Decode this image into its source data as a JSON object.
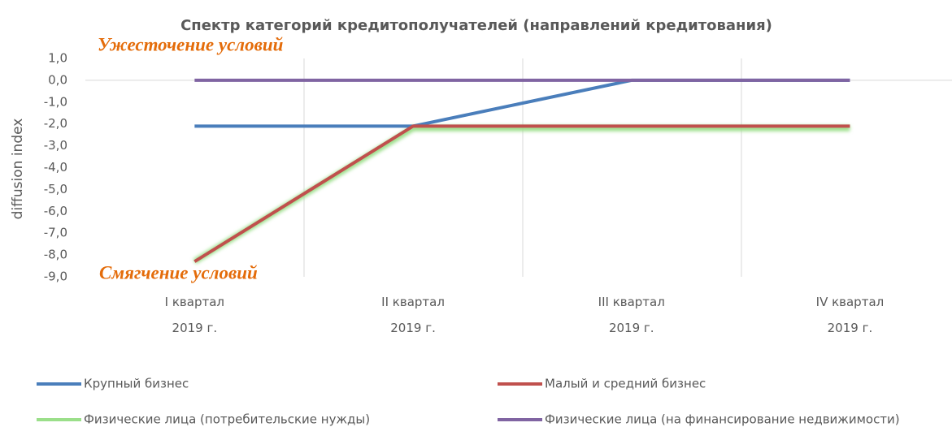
{
  "chart_data": {
    "type": "line",
    "title": "Спектр категорий кредитополучателей (направлений кредитования)",
    "annotations": [
      "Ужесточение условий",
      "Смягчение условий"
    ],
    "y_label": "diffusion index",
    "categories": [
      "I квартал 2019 г.",
      "II квартал 2019 г.",
      "III квартал 2019 г.",
      "IV квартал 2019 г."
    ],
    "series": [
      {
        "name": "Крупный бизнес",
        "color": "#4a7ebb",
        "values": [
          -2.1,
          -2.1,
          0,
          0
        ]
      },
      {
        "name": "Малый и средний бизнес",
        "color": "#c0504d",
        "values": [
          -8.3,
          -2.1,
          -2.1,
          -2.1
        ]
      },
      {
        "name": "Физические лица (потребительские нужды)",
        "color": "#9bdf8a",
        "values": [
          -8.3,
          -2.2,
          -2.2,
          -2.2
        ]
      },
      {
        "name": "Физические лица (на финансирование недвижимости)",
        "color": "#8064a2",
        "values": [
          0,
          0,
          0,
          0
        ]
      }
    ],
    "ylim": [
      -9,
      1
    ],
    "yticks": [
      {
        "value": 1,
        "label": "1,0"
      },
      {
        "value": 0,
        "label": "0,0"
      },
      {
        "value": -1,
        "label": "-1,0"
      },
      {
        "value": -2,
        "label": "-2,0"
      },
      {
        "value": -3,
        "label": "-3,0"
      },
      {
        "value": -4,
        "label": "-4,0"
      },
      {
        "value": -5,
        "label": "-5,0"
      },
      {
        "value": -6,
        "label": "-6,0"
      },
      {
        "value": -7,
        "label": "-7,0"
      },
      {
        "value": -8,
        "label": "-8,0"
      },
      {
        "value": -9,
        "label": "-9,0"
      }
    ]
  }
}
